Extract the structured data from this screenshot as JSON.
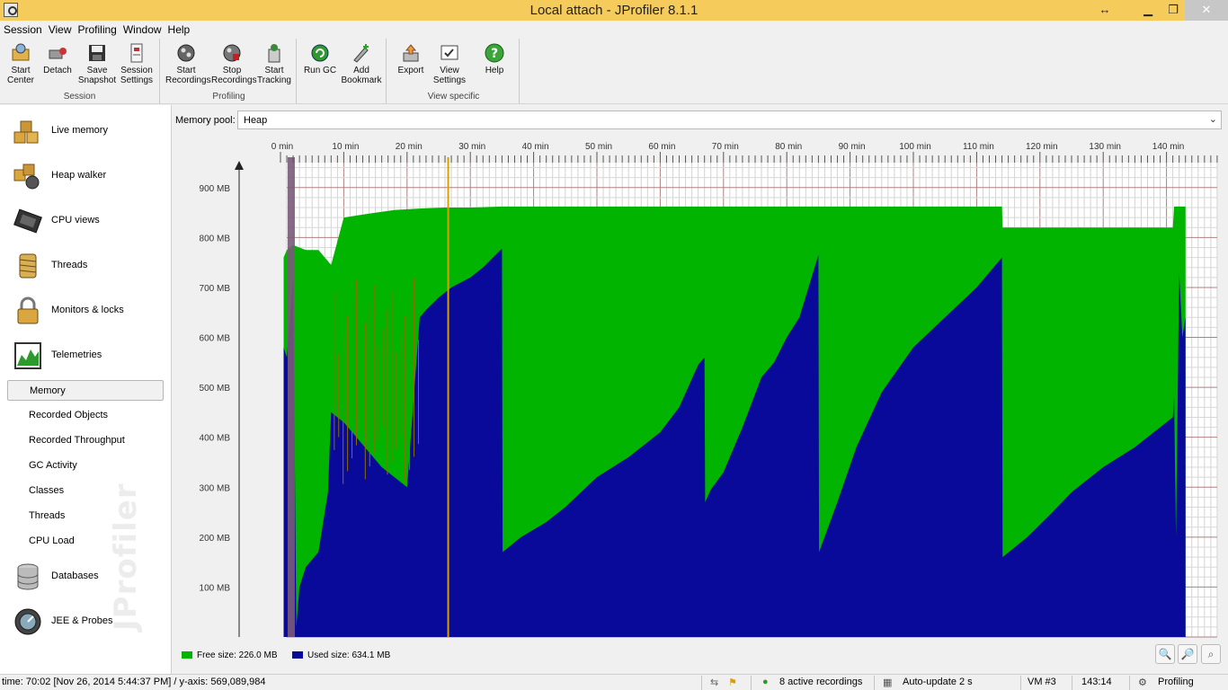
{
  "window": {
    "title": "Local attach - JProfiler 8.1.1"
  },
  "menu": [
    "Session",
    "View",
    "Profiling",
    "Window",
    "Help"
  ],
  "toolbar": {
    "session": {
      "group": "Session",
      "buttons": [
        {
          "line1": "Start",
          "line2": "Center",
          "icon": "start-center-icon"
        },
        {
          "line1": "Detach",
          "line2": "",
          "icon": "detach-icon"
        },
        {
          "line1": "Save",
          "line2": "Snapshot",
          "icon": "save-icon"
        },
        {
          "line1": "Session",
          "line2": "Settings",
          "icon": "session-settings-icon"
        }
      ]
    },
    "profiling": {
      "group": "Profiling",
      "buttons": [
        {
          "line1": "Start",
          "line2": "Recordings",
          "icon": "start-recordings-icon"
        },
        {
          "line1": "Stop",
          "line2": "Recordings",
          "icon": "stop-recordings-icon"
        },
        {
          "line1": "Start",
          "line2": "Tracking",
          "icon": "start-tracking-icon"
        }
      ]
    },
    "misc": {
      "buttons": [
        {
          "line1": "Run GC",
          "line2": "",
          "icon": "run-gc-icon"
        },
        {
          "line1": "Add",
          "line2": "Bookmark",
          "icon": "add-bookmark-icon"
        }
      ]
    },
    "view_specific": {
      "group": "View specific",
      "buttons": [
        {
          "line1": "Export",
          "line2": "",
          "icon": "export-icon"
        },
        {
          "line1": "View",
          "line2": "Settings",
          "icon": "view-settings-icon"
        },
        {
          "line1": "Help",
          "line2": "",
          "icon": "help-icon"
        }
      ]
    }
  },
  "sidebar": {
    "sections": [
      {
        "label": "Live memory",
        "icon": "live-memory-icon"
      },
      {
        "label": "Heap walker",
        "icon": "heap-walker-icon"
      },
      {
        "label": "CPU views",
        "icon": "cpu-views-icon"
      },
      {
        "label": "Threads",
        "icon": "threads-icon"
      },
      {
        "label": "Monitors & locks",
        "icon": "monitors-locks-icon"
      },
      {
        "label": "Telemetries",
        "icon": "telemetries-icon"
      }
    ],
    "telemetry_items": [
      "Memory",
      "Recorded Objects",
      "Recorded Throughput",
      "GC Activity",
      "Classes",
      "Threads",
      "CPU Load"
    ],
    "selected_item": "Memory",
    "lower_sections": [
      {
        "label": "Databases",
        "icon": "databases-icon"
      },
      {
        "label": "JEE & Probes",
        "icon": "jee-probes-icon"
      }
    ],
    "watermark": "JProfiler"
  },
  "pool": {
    "label": "Memory pool:",
    "value": "Heap"
  },
  "chart_data": {
    "type": "area",
    "title": "",
    "xlabel": "",
    "ylabel": "",
    "x_unit": "min",
    "xlim": [
      0,
      150
    ],
    "ylim": [
      0,
      950
    ],
    "x_ticks": [
      "0 min",
      "10 min",
      "20 min",
      "30 min",
      "40 min",
      "50 min",
      "60 min",
      "70 min",
      "80 min",
      "90 min",
      "100 min",
      "110 min",
      "120 min",
      "130 min",
      "140 min"
    ],
    "y_ticks": [
      "100 MB",
      "200 MB",
      "300 MB",
      "400 MB",
      "500 MB",
      "600 MB",
      "700 MB",
      "800 MB",
      "900 MB"
    ],
    "grid": true,
    "stacked": true,
    "series": [
      {
        "name": "Used size",
        "color": "#0a0a9a",
        "x": [
          0.5,
          1,
          2,
          2.5,
          3,
          4,
          6,
          7.5,
          8,
          10,
          12,
          14,
          16,
          18,
          20,
          22,
          23,
          25,
          27,
          30,
          32,
          35,
          35.1,
          38,
          42,
          45,
          50,
          55,
          60,
          63,
          66,
          67,
          67.1,
          68,
          70,
          73,
          76,
          78,
          80,
          82,
          85,
          85.1,
          88,
          91,
          95,
          100,
          105,
          110,
          114,
          114.1,
          118,
          122,
          125,
          130,
          135,
          140,
          141,
          141.2,
          141.5,
          142,
          142.5,
          143
        ],
        "y": [
          580,
          560,
          720,
          20,
          100,
          140,
          170,
          290,
          450,
          430,
          400,
          370,
          340,
          320,
          300,
          640,
          655,
          680,
          700,
          720,
          740,
          778,
          170,
          200,
          230,
          260,
          320,
          360,
          410,
          460,
          545,
          560,
          270,
          295,
          330,
          420,
          520,
          550,
          600,
          640,
          765,
          170,
          270,
          380,
          490,
          580,
          640,
          700,
          760,
          160,
          200,
          250,
          290,
          340,
          380,
          430,
          440,
          480,
          200,
          730,
          600,
          640
        ]
      },
      {
        "name": "Free size",
        "color": "#00b400",
        "x": [
          0.5,
          1,
          2,
          4,
          6,
          8,
          10,
          14,
          18,
          22,
          26,
          30,
          35,
          40,
          50,
          60,
          70,
          80,
          90,
          100,
          110,
          114,
          114.1,
          120,
          130,
          140,
          141,
          141.2,
          142,
          143
        ],
        "y_total": [
          760,
          775,
          785,
          775,
          775,
          745,
          840,
          848,
          855,
          858,
          860,
          860,
          862,
          862,
          862,
          862,
          862,
          862,
          862,
          862,
          862,
          862,
          820,
          820,
          820,
          820,
          820,
          862,
          862,
          862
        ]
      }
    ],
    "markers": [
      {
        "x": 1.7,
        "color": "#7a5a78",
        "kind": "band"
      },
      {
        "x": 26.5,
        "color": "#d8a000",
        "kind": "line"
      }
    ],
    "legend": {
      "position": "bottom-left",
      "entries": [
        {
          "label": "Free size: 226.0 MB",
          "color": "#00b400"
        },
        {
          "label": "Used size: 634.1 MB",
          "color": "#0a0a9a"
        }
      ]
    }
  },
  "zoom_buttons": [
    "zoom-in-icon",
    "zoom-out-icon",
    "zoom-fit-icon"
  ],
  "status": {
    "time": "time: 70:02 [Nov 26, 2014 5:44:37 PM] / y-axis: 569,089,984",
    "recordings": "8 active recordings",
    "autoupdate": "Auto-update 2 s",
    "vm": "VM #3",
    "elapsed": "143:14",
    "mode": "Profiling"
  }
}
